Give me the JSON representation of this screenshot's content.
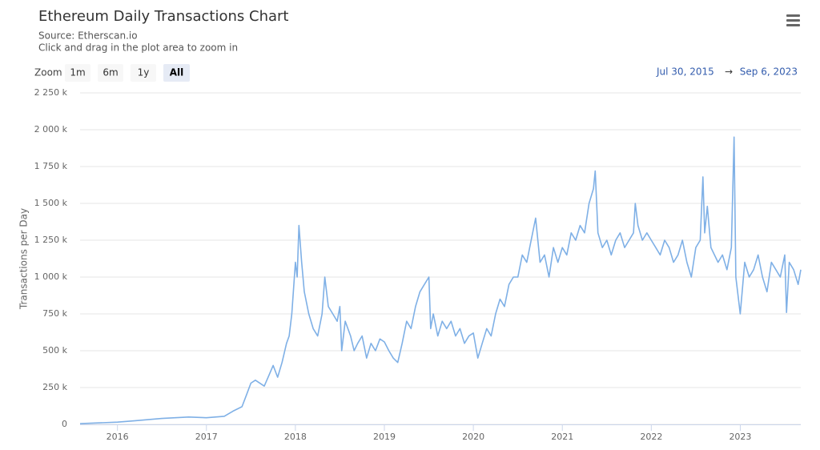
{
  "chart_data": {
    "type": "line",
    "title": "Ethereum Daily Transactions Chart",
    "subtitle": [
      "Source: Etherscan.io",
      "Click and drag in the plot area to zoom in"
    ],
    "zoom_label": "Zoom",
    "zoom_buttons": [
      "1m",
      "6m",
      "1y",
      "All"
    ],
    "zoom_selected": "All",
    "range": {
      "from": "Jul 30, 2015",
      "arrow": "→",
      "to": "Sep 6, 2023"
    },
    "y_label": "Transactions per Day",
    "color": "#7fb0e6",
    "grid": true,
    "xlim": [
      2015.58,
      2023.68
    ],
    "xticks": [
      2016,
      2017,
      2018,
      2019,
      2020,
      2021,
      2022,
      2023
    ],
    "ylim": [
      0,
      2250000
    ],
    "yticks": [
      0,
      {
        "value": 250000,
        "label": "250 k"
      },
      {
        "value": 500000,
        "label": "500 k"
      },
      {
        "value": 750000,
        "label": "750 k"
      },
      {
        "value": 1000000,
        "label": "1 000 k"
      },
      {
        "value": 1250000,
        "label": "1 250 k"
      },
      {
        "value": 1500000,
        "label": "1 500 k"
      },
      {
        "value": 1750000,
        "label": "1 750 k"
      },
      {
        "value": 2000000,
        "label": "2 000 k"
      },
      {
        "value": 2250000,
        "label": "2 250 k"
      }
    ],
    "x": [
      2015.58,
      2016.0,
      2016.2,
      2016.5,
      2016.8,
      2017.0,
      2017.2,
      2017.3,
      2017.4,
      2017.45,
      2017.5,
      2017.55,
      2017.65,
      2017.7,
      2017.75,
      2017.8,
      2017.85,
      2017.9,
      2017.93,
      2017.96,
      2018.0,
      2018.02,
      2018.04,
      2018.07,
      2018.1,
      2018.15,
      2018.2,
      2018.25,
      2018.3,
      2018.33,
      2018.37,
      2018.42,
      2018.47,
      2018.5,
      2018.52,
      2018.56,
      2018.62,
      2018.66,
      2018.7,
      2018.75,
      2018.8,
      2018.85,
      2018.9,
      2018.95,
      2019.0,
      2019.05,
      2019.1,
      2019.15,
      2019.2,
      2019.25,
      2019.3,
      2019.35,
      2019.4,
      2019.45,
      2019.5,
      2019.52,
      2019.55,
      2019.6,
      2019.65,
      2019.7,
      2019.75,
      2019.8,
      2019.85,
      2019.9,
      2019.95,
      2020.0,
      2020.05,
      2020.1,
      2020.15,
      2020.2,
      2020.25,
      2020.3,
      2020.35,
      2020.4,
      2020.45,
      2020.5,
      2020.55,
      2020.6,
      2020.65,
      2020.7,
      2020.75,
      2020.8,
      2020.85,
      2020.9,
      2020.95,
      2021.0,
      2021.05,
      2021.1,
      2021.15,
      2021.2,
      2021.25,
      2021.3,
      2021.35,
      2021.37,
      2021.4,
      2021.45,
      2021.5,
      2021.55,
      2021.6,
      2021.65,
      2021.7,
      2021.75,
      2021.8,
      2021.82,
      2021.85,
      2021.9,
      2021.95,
      2022.0,
      2022.05,
      2022.1,
      2022.15,
      2022.2,
      2022.25,
      2022.3,
      2022.35,
      2022.4,
      2022.45,
      2022.5,
      2022.55,
      2022.58,
      2022.6,
      2022.63,
      2022.67,
      2022.75,
      2022.8,
      2022.85,
      2022.9,
      2022.93,
      2022.95,
      2023.0,
      2023.05,
      2023.1,
      2023.15,
      2023.2,
      2023.25,
      2023.3,
      2023.35,
      2023.4,
      2023.45,
      2023.5,
      2023.52,
      2023.55,
      2023.6,
      2023.65,
      2023.68
    ],
    "values": [
      5000,
      15000,
      25000,
      40000,
      50000,
      45000,
      55000,
      90000,
      120000,
      200000,
      280000,
      300000,
      260000,
      330000,
      400000,
      320000,
      420000,
      550000,
      600000,
      750000,
      1100000,
      1000000,
      1350000,
      1100000,
      900000,
      750000,
      650000,
      600000,
      750000,
      1000000,
      800000,
      750000,
      700000,
      800000,
      500000,
      700000,
      600000,
      500000,
      550000,
      600000,
      450000,
      550000,
      500000,
      580000,
      560000,
      500000,
      450000,
      420000,
      550000,
      700000,
      650000,
      800000,
      900000,
      950000,
      1000000,
      650000,
      750000,
      600000,
      700000,
      650000,
      700000,
      600000,
      650000,
      550000,
      600000,
      620000,
      450000,
      550000,
      650000,
      600000,
      750000,
      850000,
      800000,
      950000,
      1000000,
      1000000,
      1150000,
      1100000,
      1250000,
      1400000,
      1100000,
      1150000,
      1000000,
      1200000,
      1100000,
      1200000,
      1150000,
      1300000,
      1250000,
      1350000,
      1300000,
      1500000,
      1600000,
      1720000,
      1300000,
      1200000,
      1250000,
      1150000,
      1250000,
      1300000,
      1200000,
      1250000,
      1300000,
      1500000,
      1350000,
      1250000,
      1300000,
      1250000,
      1200000,
      1150000,
      1250000,
      1200000,
      1100000,
      1150000,
      1250000,
      1100000,
      1000000,
      1200000,
      1250000,
      1680000,
      1300000,
      1480000,
      1200000,
      1100000,
      1150000,
      1050000,
      1200000,
      1950000,
      1000000,
      750000,
      1100000,
      1000000,
      1050000,
      1150000,
      1000000,
      900000,
      1100000,
      1050000,
      1000000,
      1150000,
      760000,
      1100000,
      1050000,
      950000,
      1050000
    ]
  }
}
